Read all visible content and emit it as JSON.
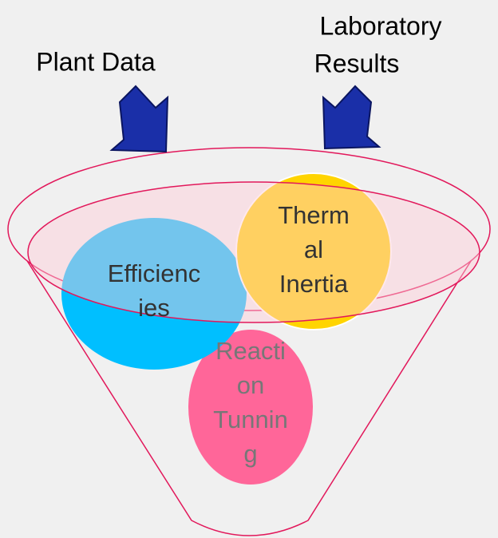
{
  "inputs": [
    {
      "lines": [
        "Plant Data"
      ]
    },
    {
      "lines": [
        "Laboratory",
        "Results"
      ]
    }
  ],
  "circles": [
    {
      "lines": [
        "Efficienc",
        "ies"
      ]
    },
    {
      "lines": [
        "Therm",
        "al",
        "Inertia"
      ]
    },
    {
      "lines": [
        "Reacti",
        "on",
        "Tunnin",
        "g"
      ]
    }
  ]
}
